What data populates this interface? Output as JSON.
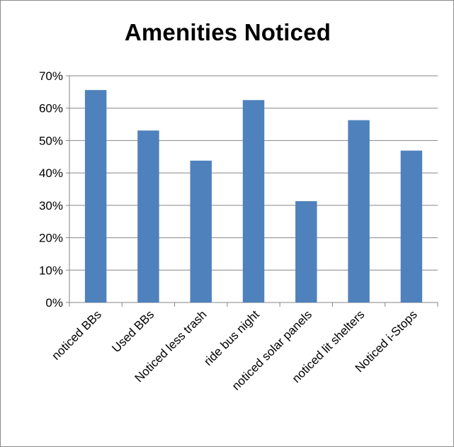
{
  "chart_data": {
    "type": "bar",
    "title": "Amenities Noticed",
    "xlabel": "",
    "ylabel": "",
    "categories": [
      "noticed BBs",
      "Used BBs",
      "Noticed less trash",
      "ride bus night",
      "noticed solar panels",
      "noticed lit shelters",
      "Noticed i-Stops"
    ],
    "values": [
      65.6,
      53.1,
      43.8,
      62.5,
      31.3,
      56.3,
      46.9
    ],
    "ylim": [
      0,
      70
    ],
    "ytick_step": 10,
    "ytick_suffix": "%",
    "grid": true,
    "legend": "none",
    "bar_color": "#4f81bd"
  }
}
